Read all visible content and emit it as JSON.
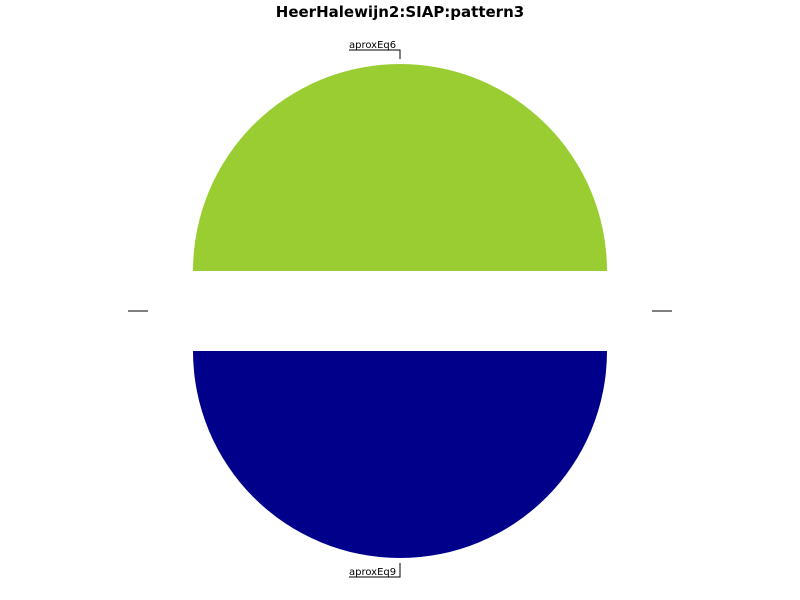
{
  "chart_data": {
    "type": "pie",
    "title": "HeerHalewijn2:SIAP:pattern3",
    "slices": [
      {
        "label": "aproxEq6",
        "value": 50,
        "color": "#9ACD32"
      },
      {
        "label": "aproxEq9",
        "value": 50,
        "color": "#00008B"
      }
    ],
    "legend": "none"
  }
}
